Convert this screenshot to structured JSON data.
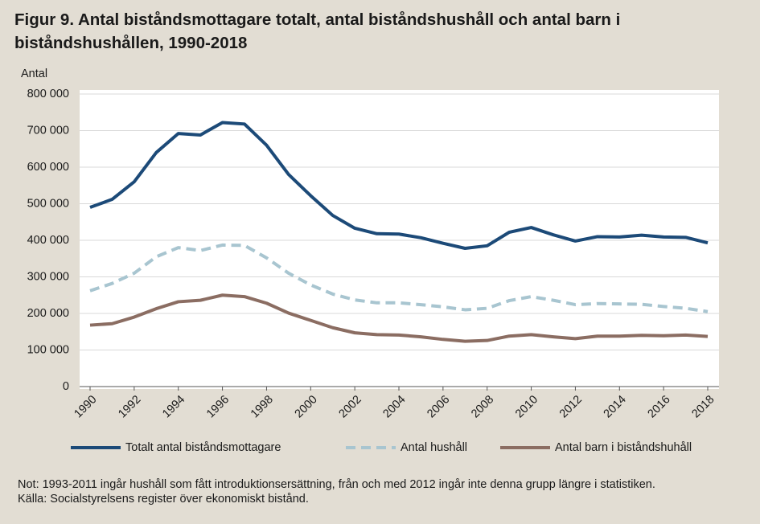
{
  "chart_data": {
    "type": "line",
    "title": "Figur 9. Antal biståndsmottagare totalt, antal biståndshushåll och antal barn i biståndshushållen, 1990-2018",
    "y_label": "Antal",
    "x": [
      1990,
      1991,
      1992,
      1993,
      1994,
      1995,
      1996,
      1997,
      1998,
      1999,
      2000,
      2001,
      2002,
      2003,
      2004,
      2005,
      2006,
      2007,
      2008,
      2009,
      2010,
      2011,
      2012,
      2013,
      2014,
      2015,
      2016,
      2017,
      2018
    ],
    "xlim": [
      1990,
      2018
    ],
    "xticks": [
      1990,
      1992,
      1994,
      1996,
      1998,
      2000,
      2002,
      2004,
      2006,
      2008,
      2010,
      2012,
      2014,
      2016,
      2018
    ],
    "ylim": [
      0,
      800000
    ],
    "yticks": [
      0,
      {
        "value": 100000,
        "label": "100 000"
      },
      {
        "value": 200000,
        "label": "200 000"
      },
      {
        "value": 300000,
        "label": "300 000"
      },
      {
        "value": 400000,
        "label": "400 000"
      },
      {
        "value": 500000,
        "label": "500 000"
      },
      {
        "value": 600000,
        "label": "600 000"
      },
      {
        "value": 700000,
        "label": "700 000"
      },
      {
        "value": 800000,
        "label": "800 000"
      }
    ],
    "grid": true,
    "legend": "bottom",
    "series": [
      {
        "name": "Totalt antal biståndsmottagare",
        "color": "#1c4a78",
        "style": "solid",
        "values": [
          490000,
          512000,
          560000,
          640000,
          692000,
          688000,
          722000,
          718000,
          660000,
          580000,
          522000,
          468000,
          433000,
          418000,
          417000,
          407000,
          392000,
          378000,
          385000,
          422000,
          435000,
          415000,
          398000,
          410000,
          409000,
          414000,
          409000,
          408000,
          393000
        ]
      },
      {
        "name": "Antal hushåll",
        "color": "#a8c5d0",
        "style": "dashed",
        "values": [
          262000,
          282000,
          310000,
          355000,
          380000,
          372000,
          387000,
          386000,
          352000,
          310000,
          278000,
          253000,
          237000,
          229000,
          229000,
          224000,
          218000,
          210000,
          214000,
          235000,
          246000,
          236000,
          224000,
          227000,
          226000,
          225000,
          219000,
          214000,
          205000
        ]
      },
      {
        "name": "Antal barn i biståndshuhåll",
        "color": "#8b6d62",
        "style": "solid",
        "values": [
          168000,
          172000,
          190000,
          213000,
          232000,
          236000,
          250000,
          246000,
          228000,
          201000,
          181000,
          161000,
          147000,
          142000,
          141000,
          136000,
          129000,
          124000,
          126000,
          138000,
          142000,
          136000,
          131000,
          138000,
          138000,
          140000,
          139000,
          141000,
          137000
        ]
      }
    ],
    "notes": [
      "Not: 1993-2011 ingår hushåll som fått introduktionsersättning, från och med 2012 ingår inte denna grupp längre i statistiken.",
      "Källa: Socialstyrelsens register över ekonomiskt bistånd."
    ]
  }
}
